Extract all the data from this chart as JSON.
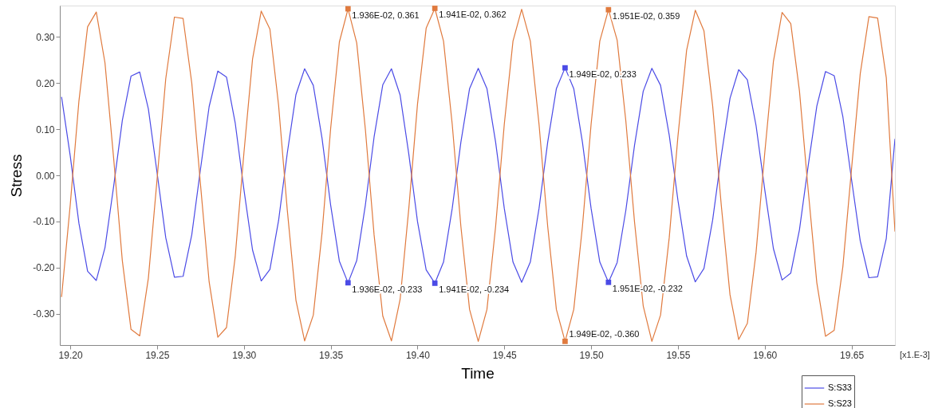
{
  "chart_data": {
    "type": "line",
    "xlabel": "Time",
    "ylabel": "Stress",
    "x": [
      19.195,
      19.2,
      19.205,
      19.21,
      19.215,
      19.22,
      19.225,
      19.23,
      19.235,
      19.24,
      19.245,
      19.25,
      19.255,
      19.26,
      19.265,
      19.27,
      19.275,
      19.28,
      19.285,
      19.29,
      19.295,
      19.3,
      19.305,
      19.31,
      19.315,
      19.32,
      19.325,
      19.33,
      19.335,
      19.34,
      19.345,
      19.35,
      19.355,
      19.36,
      19.365,
      19.37,
      19.375,
      19.38,
      19.385,
      19.39,
      19.395,
      19.4,
      19.405,
      19.41,
      19.415,
      19.42,
      19.425,
      19.43,
      19.435,
      19.44,
      19.445,
      19.45,
      19.455,
      19.46,
      19.465,
      19.47,
      19.475,
      19.48,
      19.485,
      19.49,
      19.495,
      19.5,
      19.505,
      19.51,
      19.515,
      19.52,
      19.525,
      19.53,
      19.535,
      19.54,
      19.545,
      19.55,
      19.555,
      19.56,
      19.565,
      19.57,
      19.575,
      19.58,
      19.585,
      19.59,
      19.595,
      19.6,
      19.605,
      19.61,
      19.615,
      19.62,
      19.625,
      19.63,
      19.635,
      19.64,
      19.645,
      19.65,
      19.655,
      19.66,
      19.665,
      19.67,
      19.675
    ],
    "series": [
      {
        "name": "S:S33",
        "color": "#4b4be6",
        "values": [
          0.17,
          0.042,
          -0.104,
          -0.208,
          -0.228,
          -0.157,
          -0.024,
          0.119,
          0.215,
          0.224,
          0.144,
          0.006,
          -0.135,
          -0.221,
          -0.219,
          -0.129,
          0.013,
          0.149,
          0.226,
          0.213,
          0.114,
          -0.03,
          -0.162,
          -0.229,
          -0.204,
          -0.098,
          0.048,
          0.175,
          0.231,
          0.195,
          0.081,
          -0.065,
          -0.186,
          -0.233,
          -0.185,
          -0.064,
          0.083,
          0.196,
          0.231,
          0.174,
          0.046,
          -0.1,
          -0.205,
          -0.234,
          -0.188,
          -0.072,
          0.072,
          0.188,
          0.232,
          0.188,
          0.072,
          -0.072,
          -0.188,
          -0.232,
          -0.188,
          -0.072,
          0.072,
          0.188,
          0.233,
          0.188,
          0.072,
          -0.072,
          -0.188,
          -0.232,
          -0.189,
          -0.076,
          0.065,
          0.182,
          0.232,
          0.195,
          0.087,
          -0.054,
          -0.175,
          -0.231,
          -0.202,
          -0.097,
          0.043,
          0.167,
          0.229,
          0.207,
          0.108,
          -0.031,
          -0.159,
          -0.227,
          -0.212,
          -0.118,
          0.02,
          0.15,
          0.225,
          0.216,
          0.127,
          -0.009,
          -0.142,
          -0.222,
          -0.22,
          -0.137,
          0.079
        ]
      },
      {
        "name": "S:S23",
        "color": "#e07a3e",
        "values": [
          -0.264,
          -0.064,
          0.161,
          0.322,
          0.354,
          0.244,
          0.037,
          -0.185,
          -0.334,
          -0.348,
          -0.223,
          -0.009,
          0.209,
          0.343,
          0.34,
          0.2,
          -0.019,
          -0.231,
          -0.351,
          -0.33,
          -0.177,
          0.047,
          0.252,
          0.356,
          0.317,
          0.152,
          -0.075,
          -0.271,
          -0.359,
          -0.303,
          -0.126,
          0.102,
          0.289,
          0.361,
          0.287,
          0.099,
          -0.129,
          -0.305,
          -0.359,
          -0.269,
          -0.072,
          0.154,
          0.319,
          0.362,
          0.291,
          0.111,
          -0.111,
          -0.291,
          -0.36,
          -0.291,
          -0.111,
          0.111,
          0.291,
          0.36,
          0.291,
          0.111,
          -0.111,
          -0.291,
          -0.36,
          -0.291,
          -0.111,
          0.111,
          0.291,
          0.359,
          0.293,
          0.118,
          -0.101,
          -0.283,
          -0.36,
          -0.303,
          -0.135,
          0.084,
          0.271,
          0.358,
          0.313,
          0.151,
          -0.066,
          -0.259,
          -0.356,
          -0.321,
          -0.167,
          0.048,
          0.247,
          0.353,
          0.329,
          0.183,
          -0.031,
          -0.233,
          -0.349,
          -0.336,
          -0.198,
          0.014,
          0.22,
          0.344,
          0.341,
          0.212,
          -0.122
        ]
      }
    ],
    "xlim": [
      19.194,
      19.675
    ],
    "ylim": [
      -0.368,
      0.368
    ],
    "xticks": [
      {
        "value": 19.2,
        "label": "19.20"
      },
      {
        "value": 19.25,
        "label": "19.25"
      },
      {
        "value": 19.3,
        "label": "19.30"
      },
      {
        "value": 19.35,
        "label": "19.35"
      },
      {
        "value": 19.4,
        "label": "19.40"
      },
      {
        "value": 19.45,
        "label": "19.45"
      },
      {
        "value": 19.5,
        "label": "19.50"
      },
      {
        "value": 19.55,
        "label": "19.55"
      },
      {
        "value": 19.6,
        "label": "19.60"
      },
      {
        "value": 19.65,
        "label": "19.65"
      }
    ],
    "yticks": [
      {
        "value": -0.3,
        "label": "-0.30"
      },
      {
        "value": -0.2,
        "label": "-0.20"
      },
      {
        "value": -0.1,
        "label": "-0.10"
      },
      {
        "value": 0,
        "label": "0.00"
      },
      {
        "value": 0.1,
        "label": "0.10"
      },
      {
        "value": 0.2,
        "label": "0.20"
      },
      {
        "value": 0.3,
        "label": "0.30"
      }
    ],
    "grid": false,
    "legend": "bottom right",
    "annotations": [
      {
        "text": "1.936E-02, 0.361",
        "x": 19.36,
        "y": 0.361
      },
      {
        "text": "1.941E-02, 0.362",
        "x": 19.41,
        "y": 0.362
      },
      {
        "text": "1.951E-02, 0.359",
        "x": 19.51,
        "y": 0.359
      },
      {
        "text": "1.949E-02, 0.233",
        "x": 19.485,
        "y": 0.233
      },
      {
        "text": "1.936E-02, -0.233",
        "x": 19.36,
        "y": -0.233
      },
      {
        "text": "1.941E-02, -0.234",
        "x": 19.41,
        "y": -0.234
      },
      {
        "text": "1.951E-02, -0.232",
        "x": 19.51,
        "y": -0.232
      },
      {
        "text": "1.949E-02, -0.360",
        "x": 19.485,
        "y": -0.36
      },
      "[x1.E-3]"
    ]
  }
}
